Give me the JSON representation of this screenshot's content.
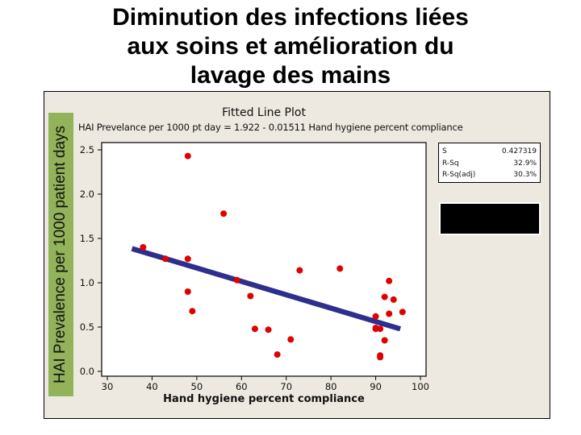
{
  "slide": {
    "title_lines": [
      "Diminution des infections liées",
      "aux soins et amélioration du",
      "lavage des mains"
    ]
  },
  "chart_data": {
    "type": "scatter",
    "title": "Fitted Line Plot",
    "subtitle": "HAI Prevelance per 1000 pt day =  1.922 - 0.01511 Hand hygiene percent compliance",
    "xlabel": "Hand hygiene percent compliance",
    "ylabel": "HAI Prevalence per 1000 patient days",
    "xlim": [
      30,
      100
    ],
    "ylim": [
      0.0,
      2.5
    ],
    "x_ticks": [
      30,
      40,
      50,
      60,
      70,
      80,
      90,
      100
    ],
    "y_ticks": [
      "0.0",
      "0.5",
      "1.0",
      "1.5",
      "2.0",
      "2.5"
    ],
    "grid": false,
    "series": [
      {
        "name": "observations",
        "color": "#e00000",
        "points": [
          [
            38,
            1.4
          ],
          [
            43,
            1.27
          ],
          [
            48,
            2.43
          ],
          [
            48,
            1.27
          ],
          [
            48,
            0.9
          ],
          [
            49,
            0.68
          ],
          [
            56,
            1.78
          ],
          [
            59,
            1.03
          ],
          [
            62,
            0.85
          ],
          [
            63,
            0.48
          ],
          [
            66,
            0.47
          ],
          [
            68,
            0.19
          ],
          [
            71,
            0.36
          ],
          [
            73,
            1.14
          ],
          [
            82,
            1.16
          ],
          [
            90,
            0.62
          ],
          [
            90,
            0.49
          ],
          [
            90,
            0.48
          ],
          [
            91,
            0.48
          ],
          [
            91,
            0.18
          ],
          [
            91,
            0.16
          ],
          [
            92,
            0.84
          ],
          [
            92,
            0.35
          ],
          [
            93,
            1.02
          ],
          [
            93,
            0.65
          ],
          [
            94,
            0.81
          ],
          [
            96,
            0.67
          ]
        ]
      }
    ],
    "fit_line": {
      "name": "regression",
      "color": "#2e2e8c",
      "intercept": 1.922,
      "slope": -0.01511,
      "x_range": [
        35.5,
        95.5
      ]
    },
    "stats": [
      {
        "label": "S",
        "value": "0.427319"
      },
      {
        "label": "R-Sq",
        "value": "32.9%"
      },
      {
        "label": "R-Sq(adj)",
        "value": "30.3%"
      }
    ]
  }
}
